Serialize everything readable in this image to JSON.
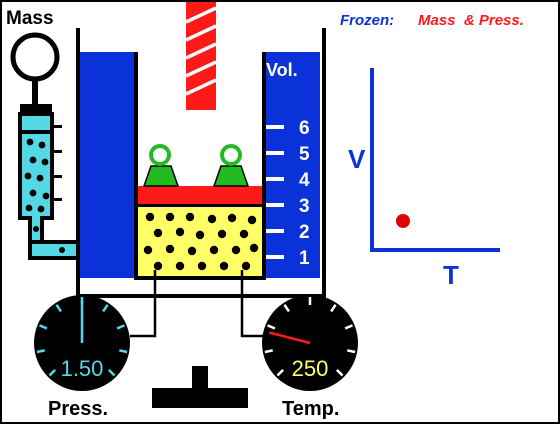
{
  "labels": {
    "mass": "Mass",
    "press": "Press.",
    "temp": "Temp.",
    "vol": "Vol."
  },
  "status": {
    "prefix": "Frozen:",
    "items": "Mass  & Press."
  },
  "volume_ticks": [
    "1",
    "2",
    "3",
    "4",
    "5",
    "6"
  ],
  "gauges": {
    "pressure": {
      "value": "1.50",
      "needle_fraction": 0.5
    },
    "temperature": {
      "value": "250",
      "needle_fraction": 0.22
    }
  },
  "graph": {
    "ylabel": "V",
    "xlabel": "T",
    "point_color": "#e00000"
  },
  "colors": {
    "water": "#0a32d8",
    "gas": "#ffff66",
    "piston": "#ff1a1a",
    "weight": "#22bb22",
    "tube": "#55d8e6",
    "title_blue": "#0a32d8",
    "title_red": "#ff1a1a"
  }
}
